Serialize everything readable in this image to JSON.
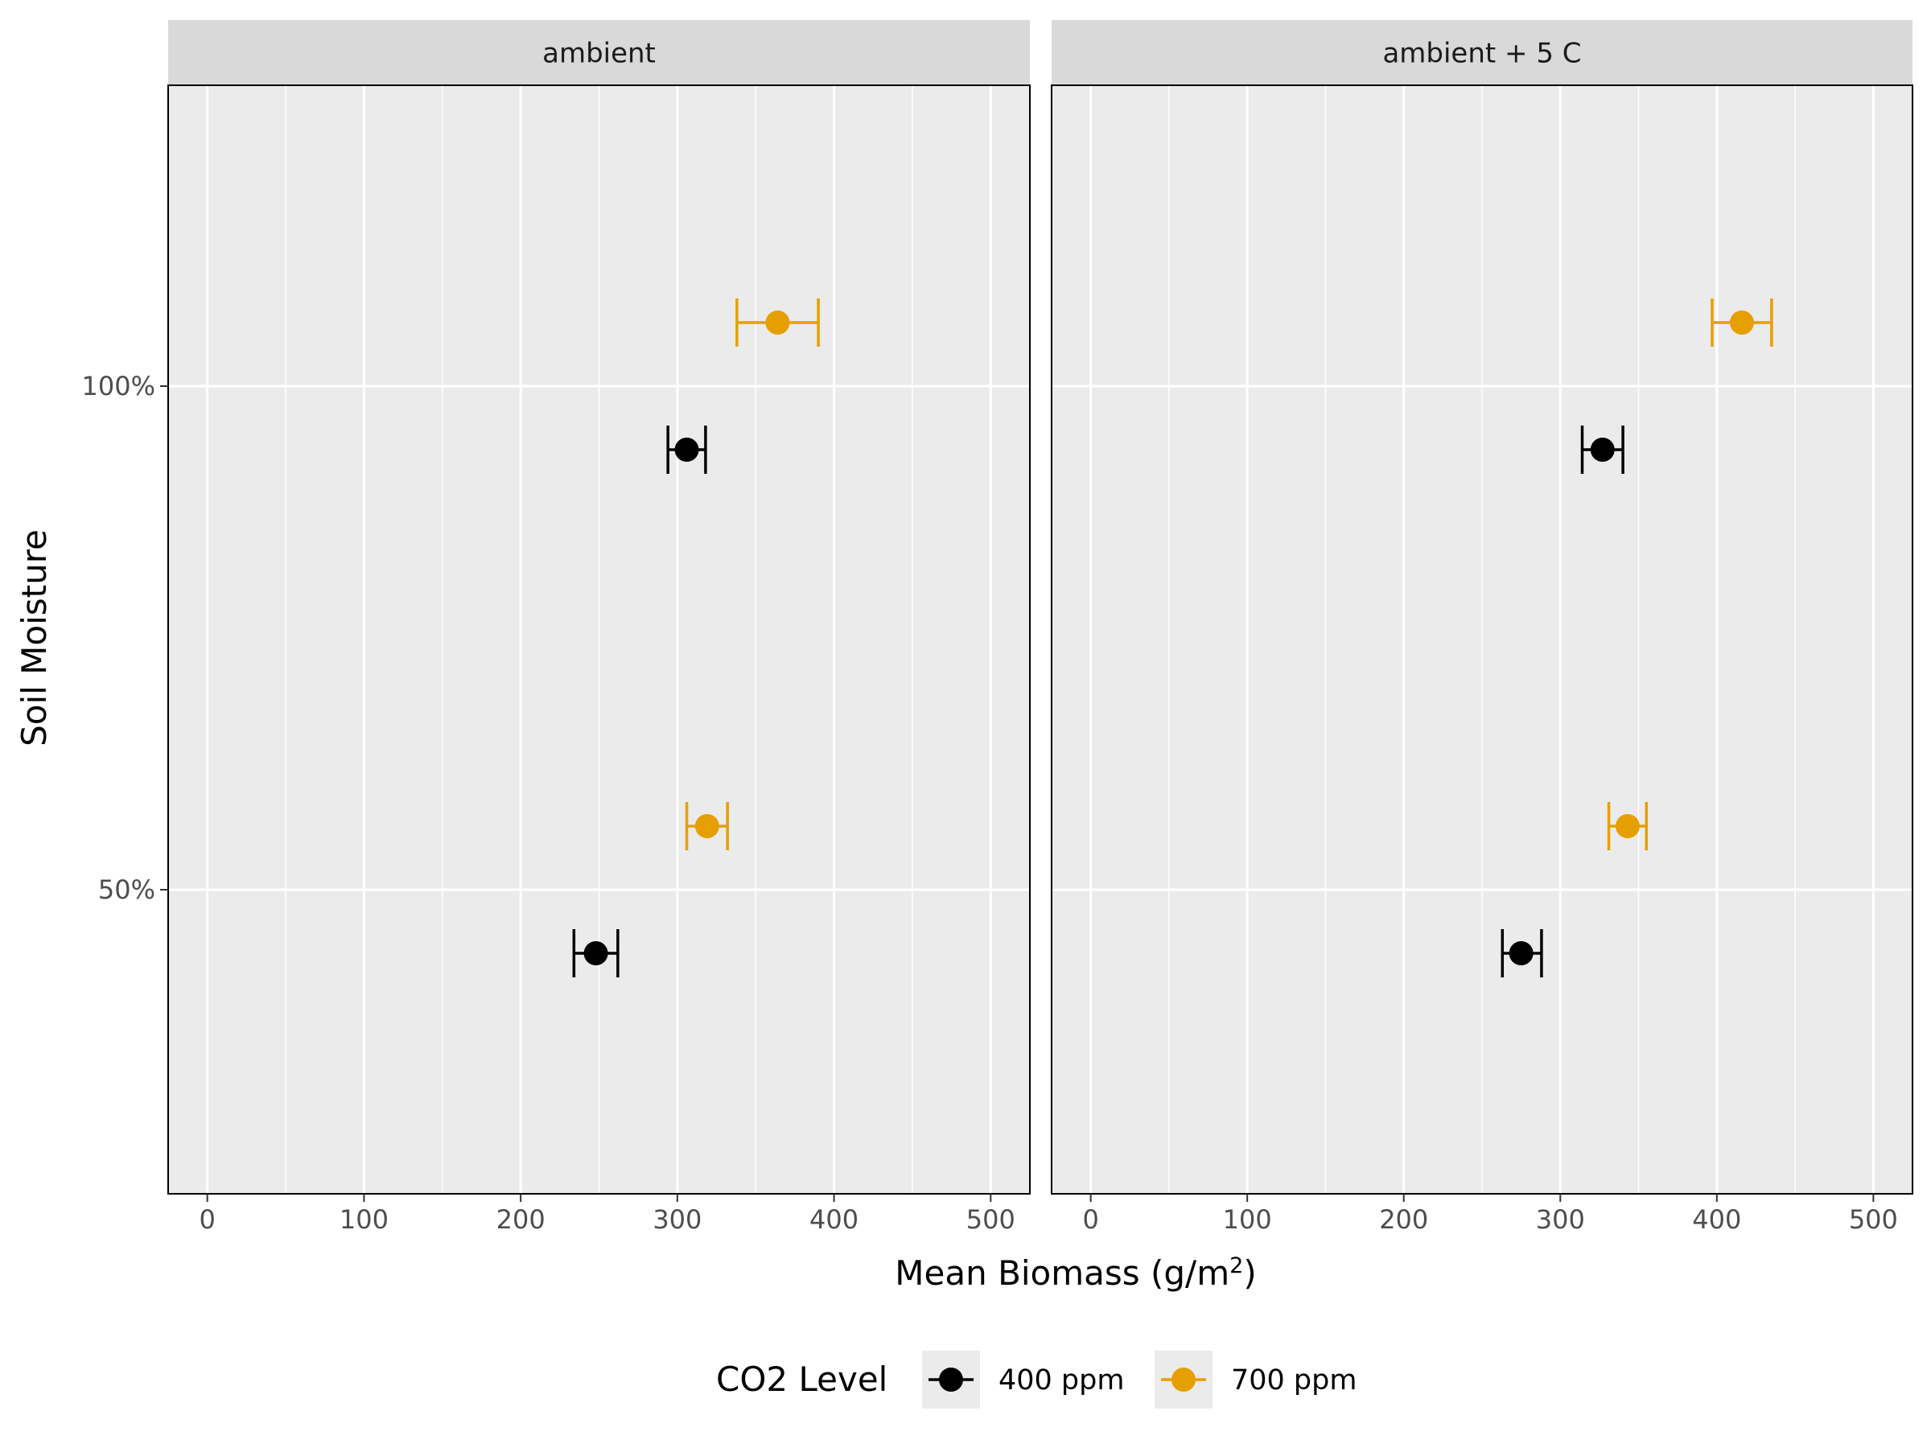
{
  "chart_data": {
    "type": "scatter",
    "subtype": "faceted point range with horizontal error bars",
    "facets": [
      "ambient",
      "ambient + 5 C"
    ],
    "xlabel_prefix": "Mean Biomass (g/m",
    "xlabel_sup": "2",
    "xlabel_suffix": ")",
    "ylabel": "Soil Moisture",
    "x_ticks": [
      0,
      100,
      200,
      300,
      400,
      500
    ],
    "x_tick_labels": [
      "0",
      "100",
      "200",
      "300",
      "400",
      "500"
    ],
    "xlim": [
      -25,
      525
    ],
    "y_categories": [
      "50%",
      "100%"
    ],
    "grid": true,
    "legend": {
      "title": "CO2 Level",
      "position": "bottom",
      "entries": [
        "400 ppm",
        "700 ppm"
      ]
    },
    "series": [
      {
        "name": "400 ppm",
        "color": "#000000",
        "points": [
          {
            "facet": "ambient",
            "moisture": "100%",
            "mean": 306,
            "lo": 294,
            "hi": 318
          },
          {
            "facet": "ambient",
            "moisture": "50%",
            "mean": 248,
            "lo": 234,
            "hi": 262
          },
          {
            "facet": "ambient + 5 C",
            "moisture": "100%",
            "mean": 327,
            "lo": 314,
            "hi": 340
          },
          {
            "facet": "ambient + 5 C",
            "moisture": "50%",
            "mean": 275,
            "lo": 263,
            "hi": 288
          }
        ]
      },
      {
        "name": "700 ppm",
        "color": "#E69F00",
        "points": [
          {
            "facet": "ambient",
            "moisture": "100%",
            "mean": 364,
            "lo": 338,
            "hi": 390
          },
          {
            "facet": "ambient",
            "moisture": "50%",
            "mean": 319,
            "lo": 306,
            "hi": 332
          },
          {
            "facet": "ambient + 5 C",
            "moisture": "100%",
            "mean": 416,
            "lo": 397,
            "hi": 435
          },
          {
            "facet": "ambient + 5 C",
            "moisture": "50%",
            "mean": 343,
            "lo": 331,
            "hi": 355
          }
        ]
      }
    ]
  }
}
